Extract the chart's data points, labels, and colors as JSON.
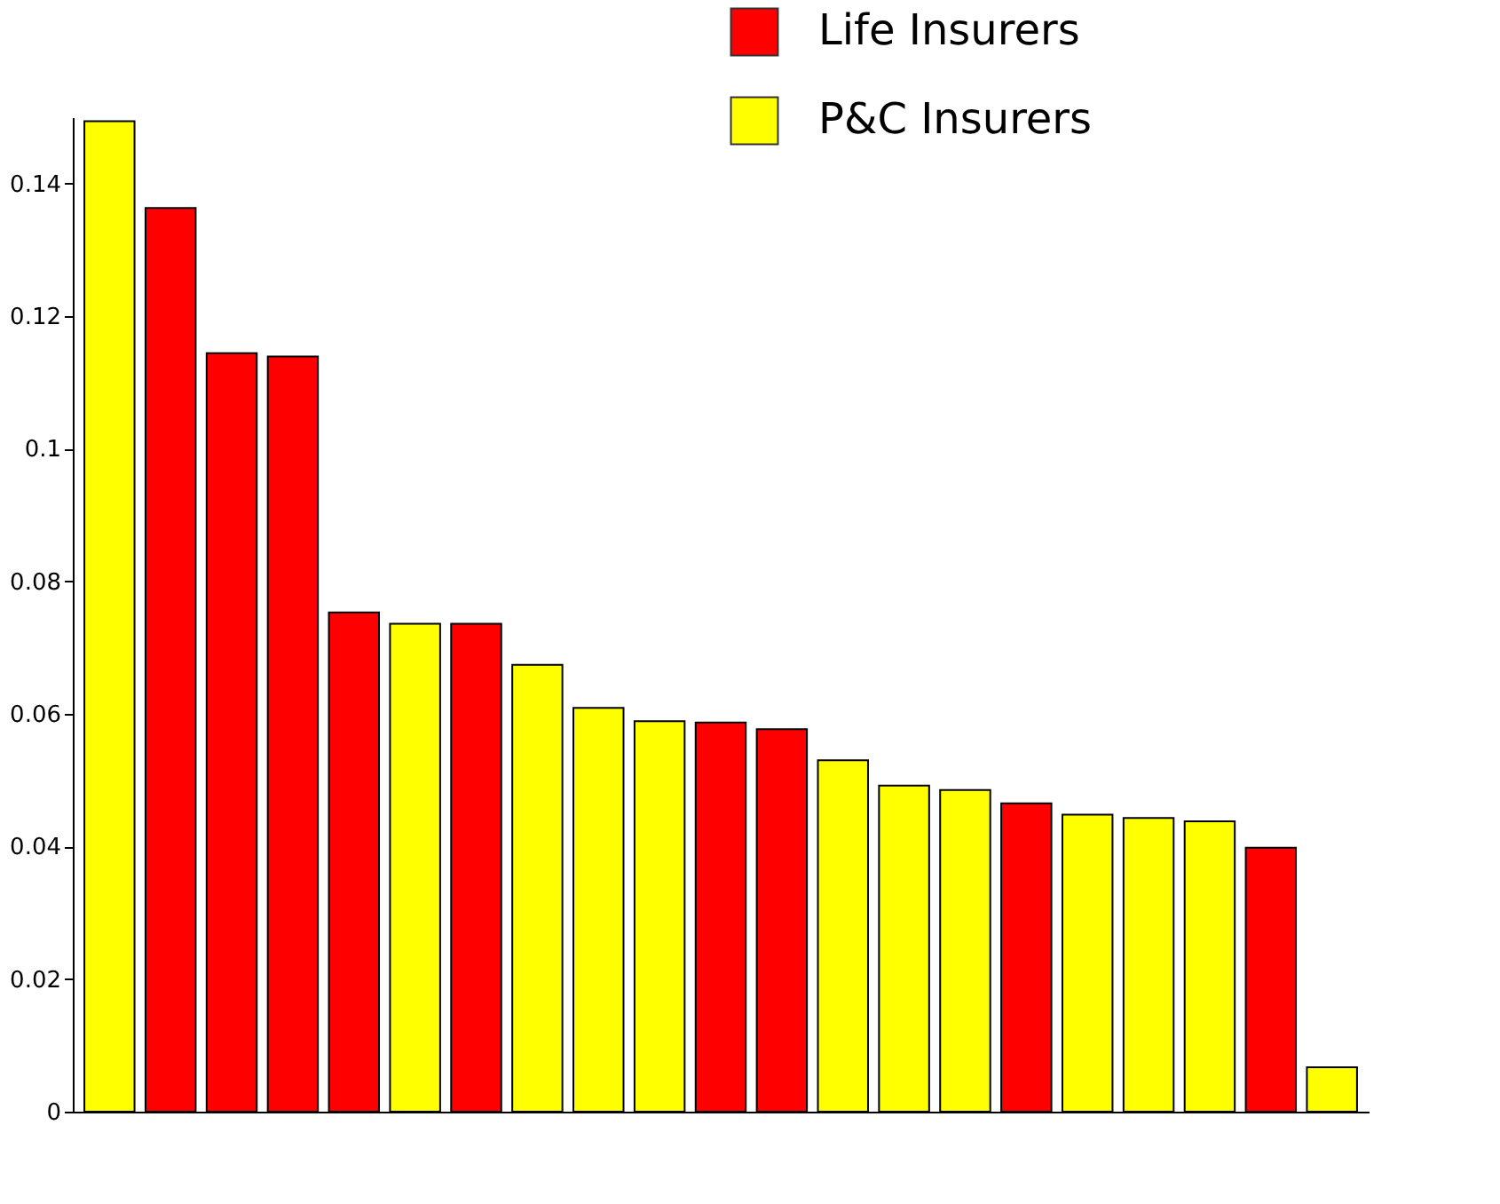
{
  "chart_data": {
    "type": "bar",
    "categories": [
      null,
      null,
      null,
      null,
      null,
      null,
      null,
      null,
      null,
      null,
      null,
      null,
      null,
      null,
      null,
      null,
      null,
      null,
      null,
      null,
      null
    ],
    "series": [
      {
        "name": "Life Insurers",
        "color": "#ff0000",
        "values": [
          null,
          0.1363,
          0.1144,
          0.1139,
          0.0753,
          null,
          0.0736,
          null,
          null,
          null,
          0.0587,
          0.0577,
          null,
          null,
          null,
          0.0465,
          null,
          null,
          null,
          0.0398,
          null
        ]
      },
      {
        "name": "P&C Insurers",
        "color": "#ffff00",
        "values": [
          0.1494,
          null,
          null,
          null,
          null,
          0.0736,
          null,
          0.0674,
          0.0609,
          0.0589,
          null,
          null,
          0.053,
          0.0492,
          0.0485,
          null,
          0.0448,
          0.0443,
          0.0438,
          null,
          0.0067
        ]
      }
    ],
    "ylim": [
      0,
      0.15
    ],
    "yticks": [
      0,
      0.02,
      0.04,
      0.06,
      0.08,
      0.1,
      0.12,
      0.14
    ],
    "grid": false,
    "legend": "top right",
    "tick_labels": "y"
  }
}
